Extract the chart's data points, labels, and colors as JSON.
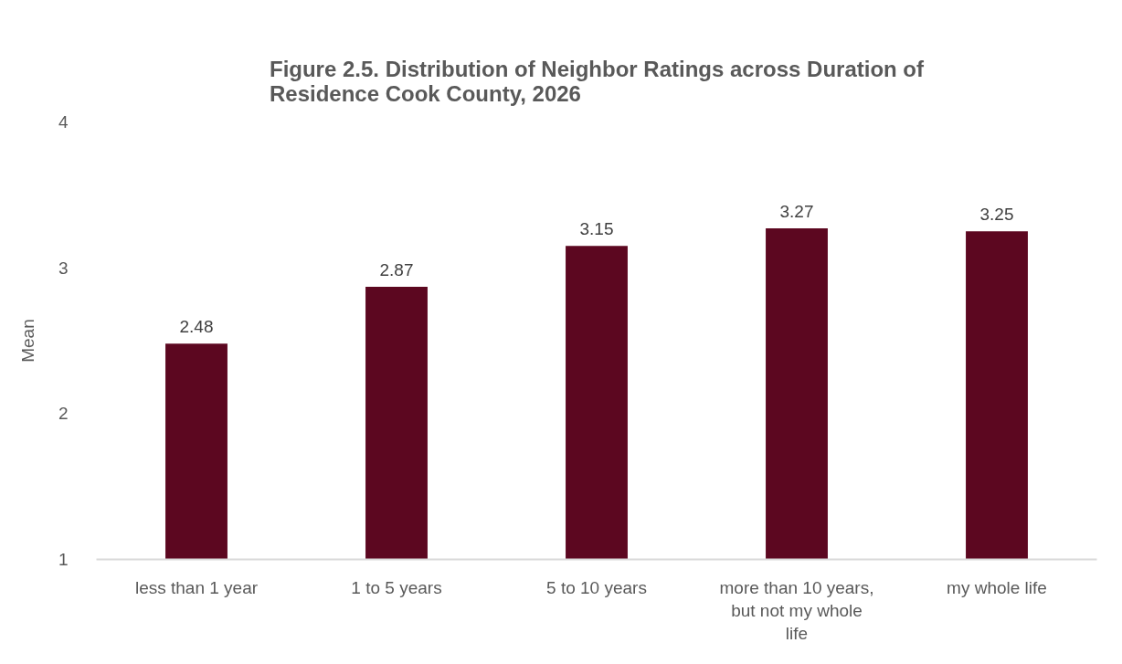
{
  "chart_data": {
    "type": "bar",
    "title": "Figure 2.5. Distribution of Neighbor Ratings across Duration of Residence Cook County, 2026",
    "ylabel": "Mean",
    "categories": [
      "less than 1 year",
      "1 to 5 years",
      "5 to 10 years",
      "more than 10 years, but not my whole life",
      "my whole life"
    ],
    "values": [
      2.48,
      2.87,
      3.15,
      3.27,
      3.25
    ],
    "color": "#5c0720",
    "ylim": [
      1,
      4
    ],
    "yticks": [
      1,
      2,
      3,
      4
    ],
    "data_labels": true
  }
}
